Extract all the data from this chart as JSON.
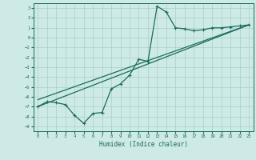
{
  "xlabel": "Humidex (Indice chaleur)",
  "background_color": "#ceeae6",
  "grid_color": "#aacfca",
  "line_color": "#1a6b5e",
  "xlim": [
    -0.5,
    23.5
  ],
  "ylim": [
    -9.5,
    3.5
  ],
  "xticks": [
    0,
    1,
    2,
    3,
    4,
    5,
    6,
    7,
    8,
    9,
    10,
    11,
    12,
    13,
    14,
    15,
    16,
    17,
    18,
    19,
    20,
    21,
    22,
    23
  ],
  "yticks": [
    3,
    2,
    1,
    0,
    -1,
    -2,
    -3,
    -4,
    -5,
    -6,
    -7,
    -8,
    -9
  ],
  "data_x": [
    0,
    1,
    2,
    3,
    4,
    5,
    6,
    7,
    8,
    9,
    10,
    11,
    12,
    13,
    14,
    15,
    16,
    17,
    18,
    19,
    20,
    21,
    22,
    23
  ],
  "data_y": [
    -7.0,
    -6.5,
    -6.6,
    -6.8,
    -7.9,
    -8.7,
    -7.7,
    -7.6,
    -5.2,
    -4.7,
    -3.8,
    -2.2,
    -2.4,
    3.2,
    2.6,
    1.0,
    0.9,
    0.7,
    0.8,
    1.0,
    1.0,
    1.1,
    1.2,
    1.3
  ],
  "line1_x": [
    0,
    23
  ],
  "line1_y": [
    -7.0,
    1.3
  ],
  "line2_x": [
    0,
    23
  ],
  "line2_y": [
    -6.3,
    1.3
  ]
}
